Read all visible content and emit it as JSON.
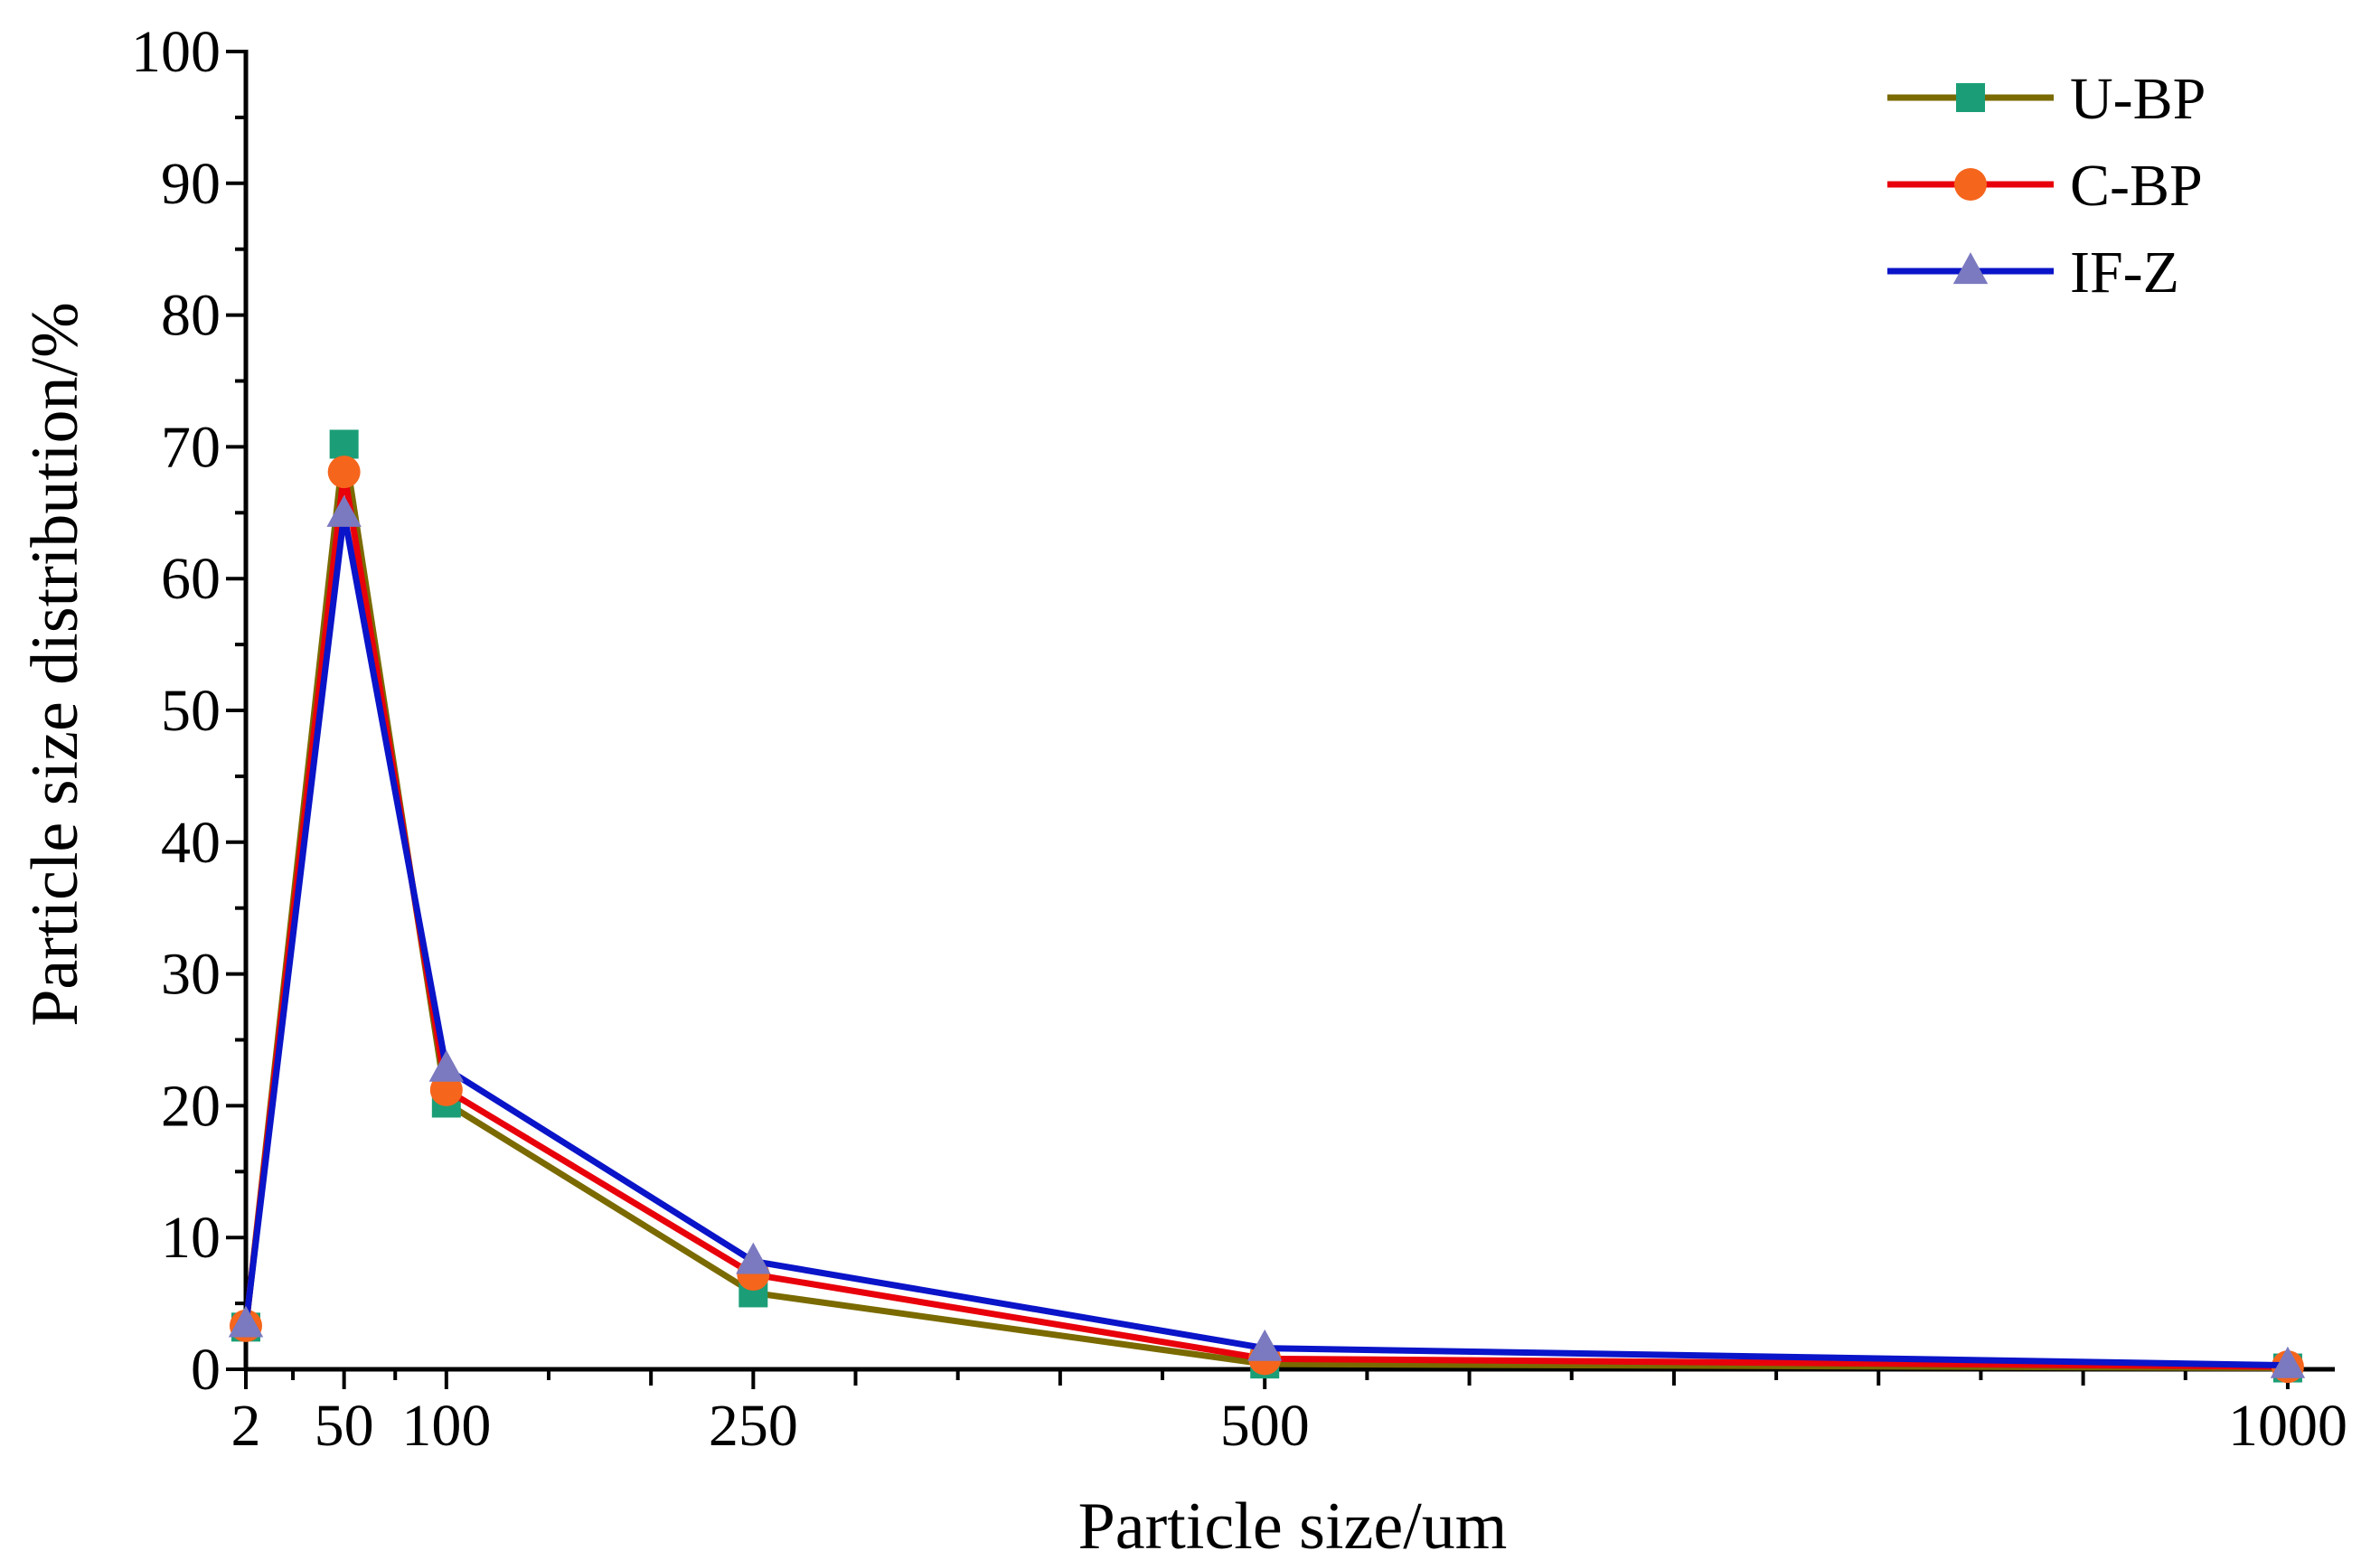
{
  "chart_data": {
    "type": "line",
    "xlabel": "Particle size/um",
    "ylabel": "Particle size distribution/%",
    "x": [
      2,
      50,
      100,
      250,
      500,
      1000
    ],
    "xticks": [
      2,
      50,
      100,
      250,
      500,
      1000
    ],
    "xlim": [
      2,
      1023
    ],
    "ylim": [
      0,
      100
    ],
    "yticks": [
      0,
      10,
      20,
      30,
      40,
      50,
      60,
      70,
      80,
      90,
      100
    ],
    "grid": false,
    "legend_position": "top-right",
    "series": [
      {
        "name": "U-BP",
        "color": "#7a6a00",
        "marker_color": "#1b9e77",
        "marker": "square",
        "values": [
          3.2,
          70.2,
          20.2,
          5.8,
          0.4,
          0.1
        ]
      },
      {
        "name": "C-BP",
        "color": "#e8000b",
        "marker_color": "#f5651c",
        "marker": "circle",
        "values": [
          3.3,
          68.1,
          21.2,
          7.2,
          0.8,
          0.2
        ]
      },
      {
        "name": "IF-Z",
        "color": "#0a14c8",
        "marker_color": "#7b79c0",
        "marker": "triangle",
        "values": [
          3.4,
          64.9,
          22.8,
          8.2,
          1.6,
          0.3
        ]
      }
    ]
  }
}
